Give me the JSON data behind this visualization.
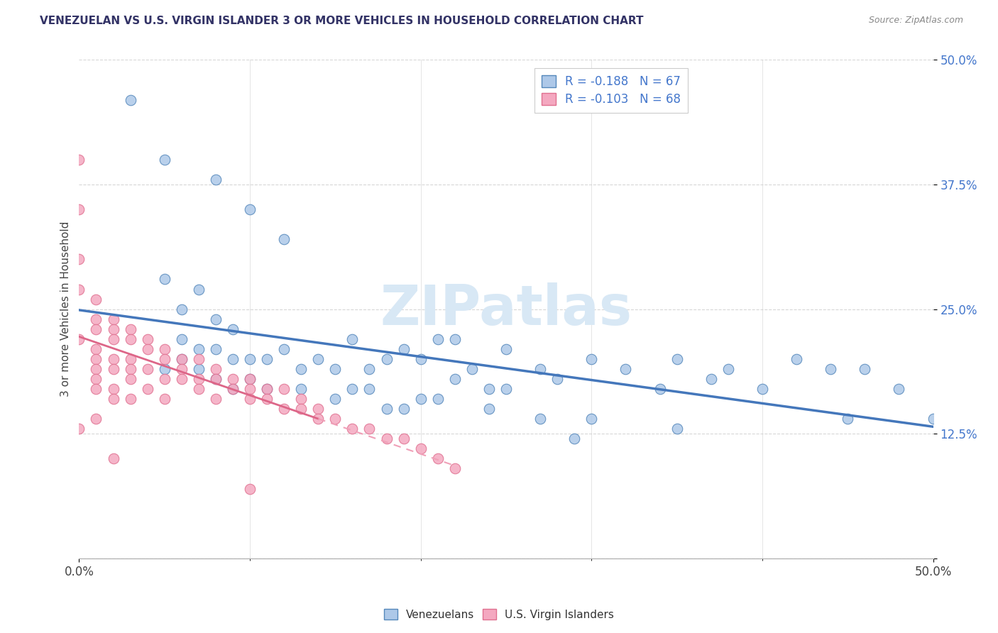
{
  "title": "VENEZUELAN VS U.S. VIRGIN ISLANDER 3 OR MORE VEHICLES IN HOUSEHOLD CORRELATION CHART",
  "source": "Source: ZipAtlas.com",
  "ylabel": "3 or more Vehicles in Household",
  "ytick_values": [
    0,
    0.125,
    0.25,
    0.375,
    0.5
  ],
  "ytick_labels": [
    "",
    "12.5%",
    "25.0%",
    "37.5%",
    "50.0%"
  ],
  "xtick_values": [
    0,
    0.5
  ],
  "xtick_labels": [
    "0.0%",
    "50.0%"
  ],
  "xrange": [
    0,
    0.5
  ],
  "yrange": [
    0,
    0.5
  ],
  "legend_line1": "R = -0.188   N = 67",
  "legend_line2": "R = -0.103   N = 68",
  "color_venezuelan_fill": "#adc8e8",
  "color_venezuelan_edge": "#5588bb",
  "color_virgin_fill": "#f4a8c0",
  "color_virgin_edge": "#e07090",
  "color_trend_ven": "#4477bb",
  "color_trend_vir_solid": "#dd6688",
  "color_trend_vir_dash": "#f0a0b8",
  "watermark_color": "#d8e8f5",
  "venezuelan_x": [
    0.03,
    0.05,
    0.08,
    0.1,
    0.12,
    0.05,
    0.07,
    0.06,
    0.08,
    0.09,
    0.06,
    0.07,
    0.08,
    0.09,
    0.1,
    0.11,
    0.12,
    0.13,
    0.14,
    0.15,
    0.16,
    0.17,
    0.18,
    0.19,
    0.2,
    0.21,
    0.22,
    0.23,
    0.24,
    0.25,
    0.27,
    0.28,
    0.3,
    0.32,
    0.34,
    0.35,
    0.37,
    0.38,
    0.4,
    0.42,
    0.44,
    0.46,
    0.48,
    0.5,
    0.05,
    0.06,
    0.07,
    0.08,
    0.09,
    0.1,
    0.11,
    0.13,
    0.15,
    0.17,
    0.19,
    0.21,
    0.24,
    0.27,
    0.3,
    0.35,
    0.25,
    0.22,
    0.2,
    0.18,
    0.16,
    0.29,
    0.45
  ],
  "venezuelan_y": [
    0.46,
    0.4,
    0.38,
    0.35,
    0.32,
    0.28,
    0.27,
    0.25,
    0.24,
    0.23,
    0.22,
    0.21,
    0.21,
    0.2,
    0.2,
    0.2,
    0.21,
    0.19,
    0.2,
    0.19,
    0.22,
    0.19,
    0.2,
    0.21,
    0.2,
    0.22,
    0.22,
    0.19,
    0.17,
    0.21,
    0.19,
    0.18,
    0.2,
    0.19,
    0.17,
    0.2,
    0.18,
    0.19,
    0.17,
    0.2,
    0.19,
    0.19,
    0.17,
    0.14,
    0.19,
    0.2,
    0.19,
    0.18,
    0.17,
    0.18,
    0.17,
    0.17,
    0.16,
    0.17,
    0.15,
    0.16,
    0.15,
    0.14,
    0.14,
    0.13,
    0.17,
    0.18,
    0.16,
    0.15,
    0.17,
    0.12,
    0.14
  ],
  "virgin_x": [
    0.0,
    0.0,
    0.0,
    0.0,
    0.0,
    0.01,
    0.01,
    0.01,
    0.01,
    0.01,
    0.01,
    0.01,
    0.01,
    0.02,
    0.02,
    0.02,
    0.02,
    0.02,
    0.02,
    0.02,
    0.03,
    0.03,
    0.03,
    0.03,
    0.03,
    0.03,
    0.04,
    0.04,
    0.04,
    0.04,
    0.05,
    0.05,
    0.05,
    0.05,
    0.06,
    0.06,
    0.06,
    0.07,
    0.07,
    0.07,
    0.08,
    0.08,
    0.08,
    0.09,
    0.09,
    0.1,
    0.1,
    0.1,
    0.11,
    0.11,
    0.12,
    0.12,
    0.13,
    0.13,
    0.14,
    0.14,
    0.15,
    0.16,
    0.17,
    0.18,
    0.19,
    0.2,
    0.21,
    0.22,
    0.0,
    0.01,
    0.02,
    0.1
  ],
  "virgin_y": [
    0.4,
    0.35,
    0.3,
    0.27,
    0.22,
    0.26,
    0.24,
    0.23,
    0.21,
    0.2,
    0.19,
    0.18,
    0.17,
    0.24,
    0.23,
    0.22,
    0.2,
    0.19,
    0.17,
    0.16,
    0.23,
    0.22,
    0.2,
    0.19,
    0.18,
    0.16,
    0.22,
    0.21,
    0.19,
    0.17,
    0.21,
    0.2,
    0.18,
    0.16,
    0.2,
    0.19,
    0.18,
    0.2,
    0.18,
    0.17,
    0.19,
    0.18,
    0.16,
    0.18,
    0.17,
    0.18,
    0.17,
    0.16,
    0.17,
    0.16,
    0.17,
    0.15,
    0.16,
    0.15,
    0.15,
    0.14,
    0.14,
    0.13,
    0.13,
    0.12,
    0.12,
    0.11,
    0.1,
    0.09,
    0.13,
    0.14,
    0.1,
    0.07
  ]
}
